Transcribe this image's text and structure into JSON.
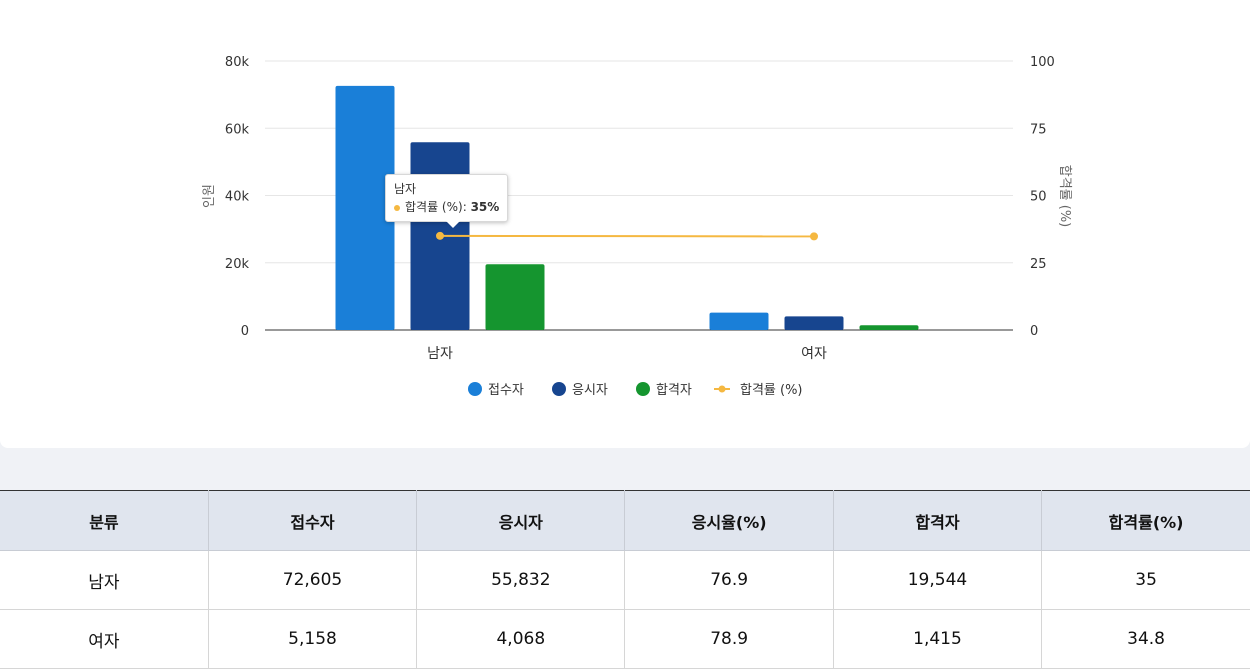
{
  "chart_data": {
    "type": "bar",
    "categories": [
      "남자",
      "여자"
    ],
    "series": [
      {
        "name": "접수자",
        "kind": "bar",
        "axis": "left",
        "color": "#1a7fd8",
        "values": [
          72605,
          5158
        ]
      },
      {
        "name": "응시자",
        "kind": "bar",
        "axis": "left",
        "color": "#17458f",
        "values": [
          55832,
          4068
        ]
      },
      {
        "name": "합격자",
        "kind": "bar",
        "axis": "left",
        "color": "#15952f",
        "values": [
          19544,
          1415
        ]
      },
      {
        "name": "합격률 (%)",
        "kind": "line",
        "axis": "right",
        "color": "#f5b841",
        "values": [
          35,
          34.8
        ]
      }
    ],
    "ylabel": "인원",
    "y2label": "합격률 (%)",
    "ylim": [
      0,
      80000
    ],
    "y2lim": [
      0,
      100
    ],
    "yticks": [
      "0",
      "20k",
      "40k",
      "60k",
      "80k"
    ],
    "y2ticks": [
      "0",
      "25",
      "50",
      "75",
      "100"
    ],
    "grid": true,
    "legend": "bottom",
    "tooltip": {
      "title": "남자",
      "label": "합격률 (%)",
      "value": "35%"
    }
  },
  "table": {
    "headers": [
      "분류",
      "접수자",
      "응시자",
      "응시율(%)",
      "합격자",
      "합격률(%)"
    ],
    "rows": [
      [
        "남자",
        "72,605",
        "55,832",
        "76.9",
        "19,544",
        "35"
      ],
      [
        "여자",
        "5,158",
        "4,068",
        "78.9",
        "1,415",
        "34.8"
      ]
    ]
  }
}
